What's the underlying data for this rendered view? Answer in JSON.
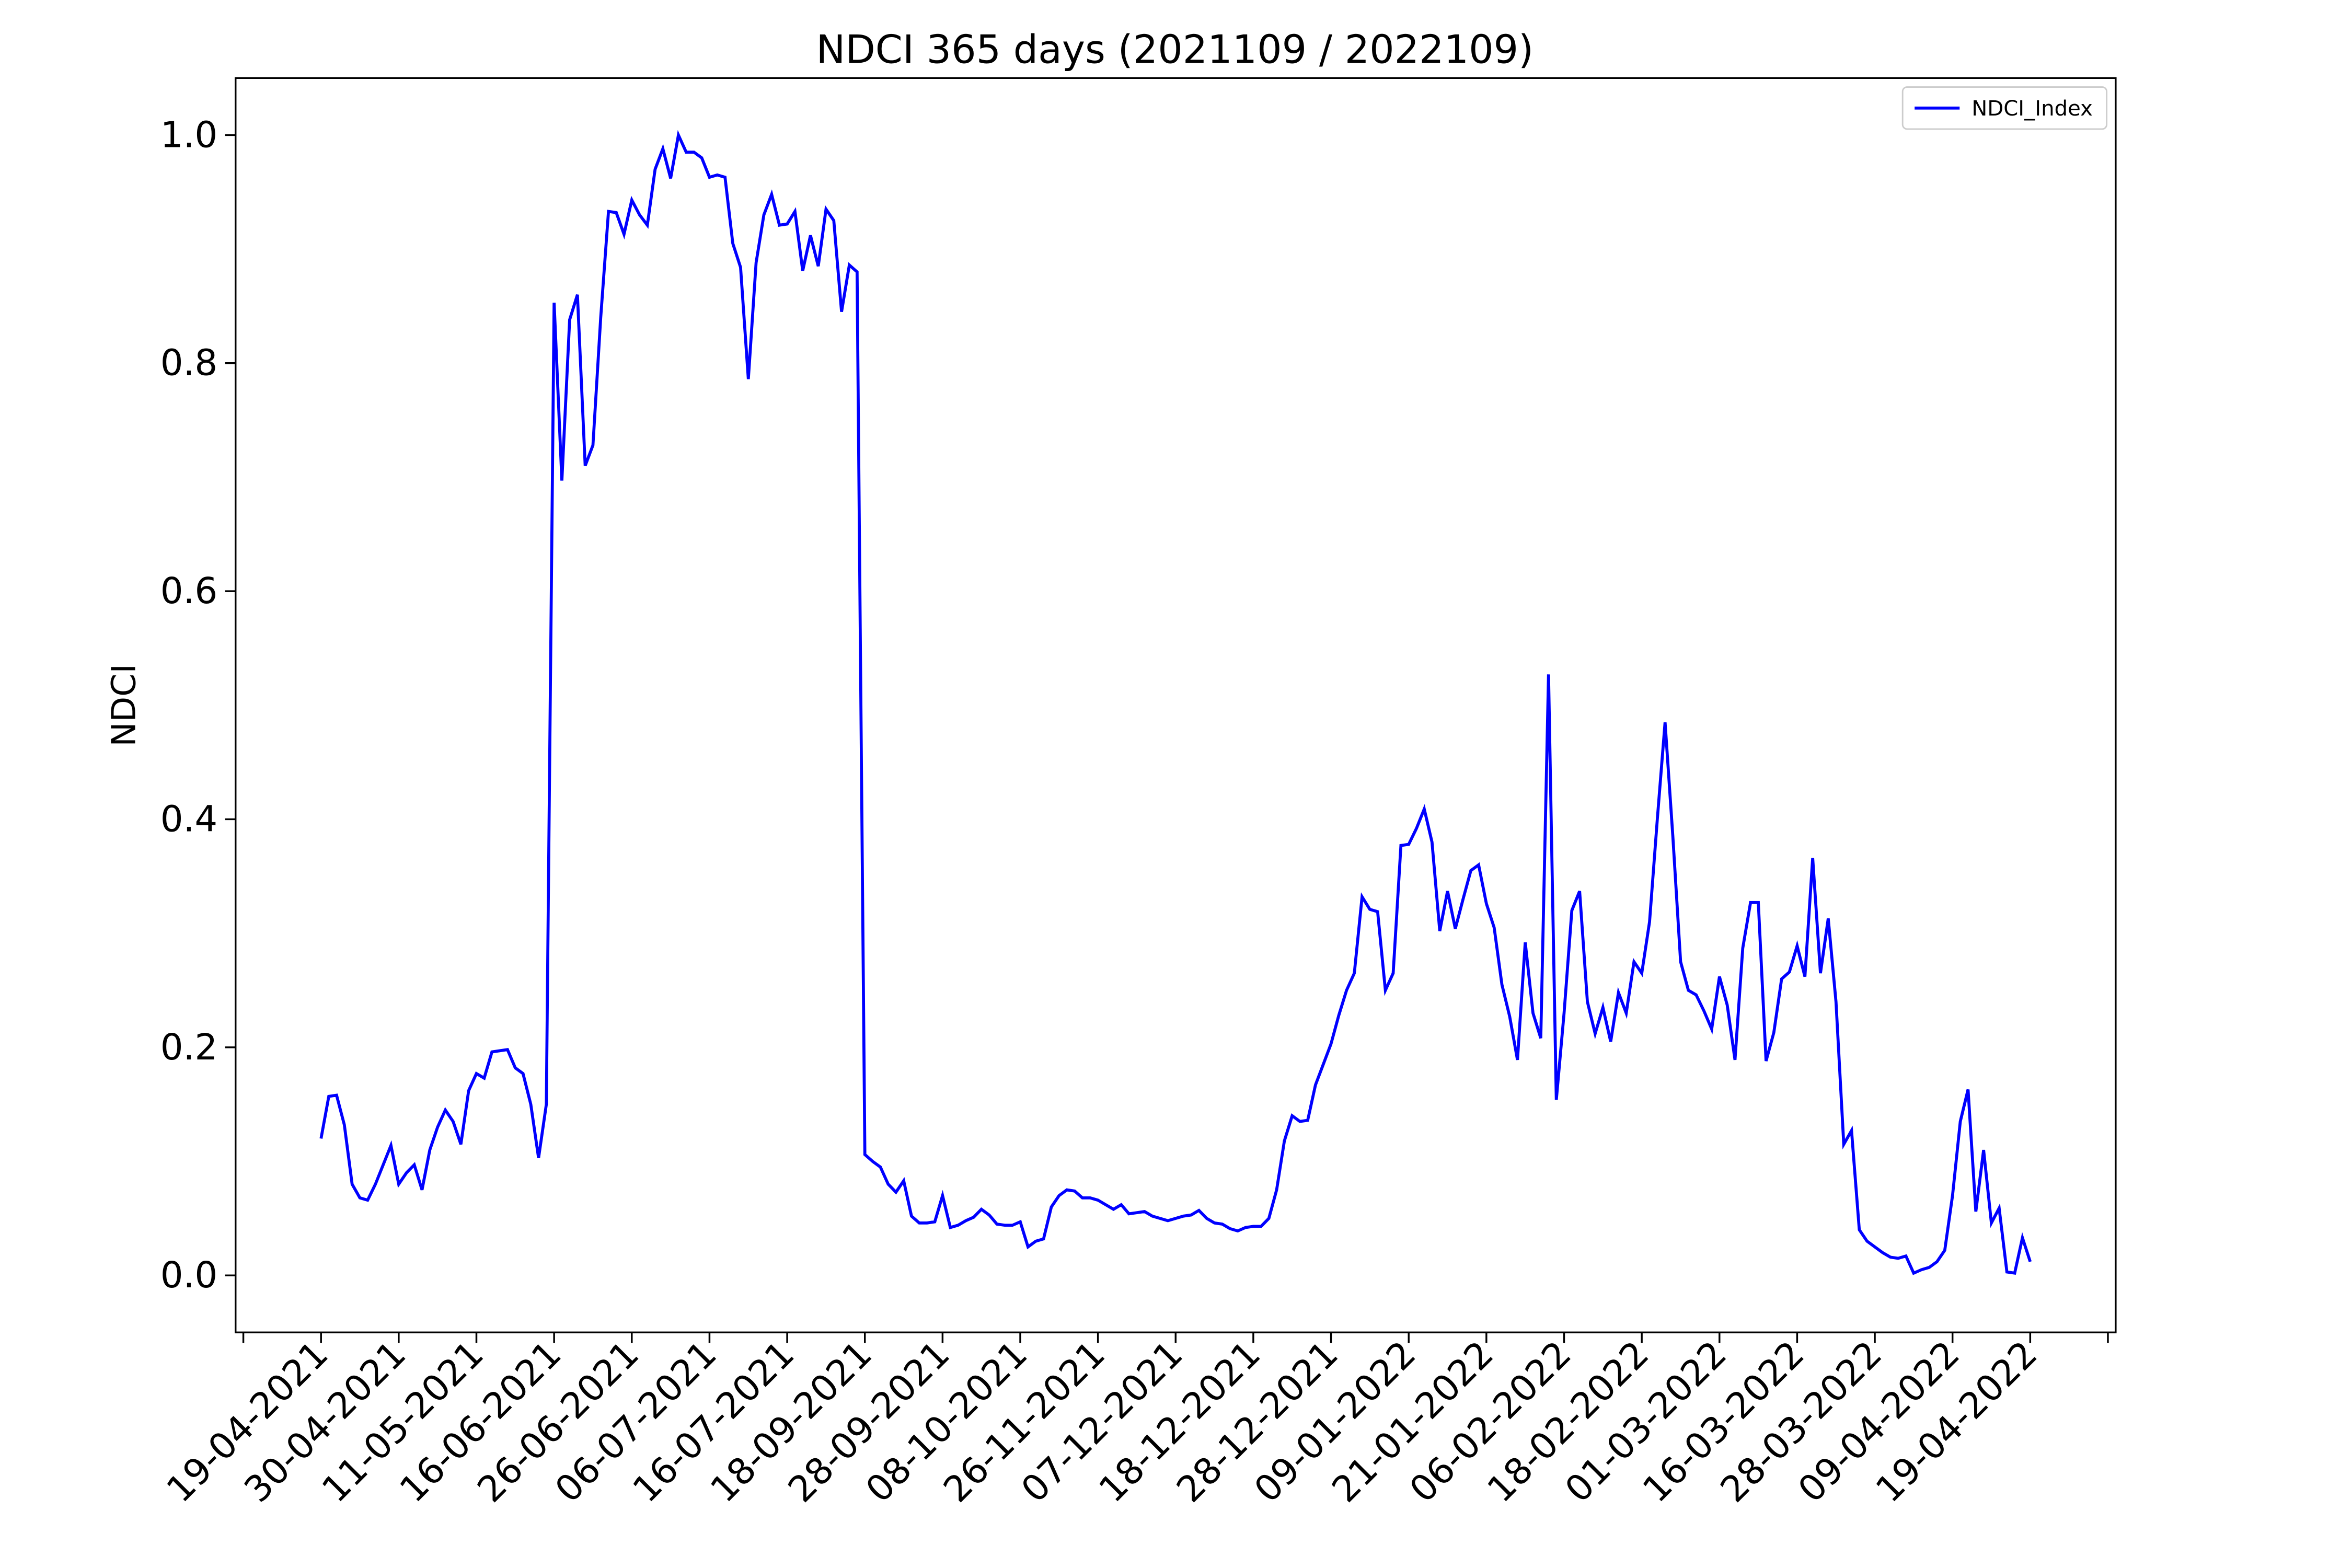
{
  "chart_data": {
    "type": "line",
    "title": "NDCI 365 days (2021109 / 2022109)",
    "y_label": "NDCI",
    "categories": [
      "19-04-2021",
      null,
      null,
      null,
      null,
      null,
      null,
      null,
      null,
      null,
      "30-04-2021",
      null,
      null,
      null,
      null,
      null,
      null,
      null,
      null,
      null,
      "11-05-2021",
      null,
      null,
      null,
      null,
      null,
      null,
      null,
      null,
      null,
      "16-06-2021",
      null,
      null,
      null,
      null,
      null,
      null,
      null,
      null,
      null,
      "26-06-2021",
      null,
      null,
      null,
      null,
      null,
      null,
      null,
      null,
      null,
      "06-07-2021",
      null,
      null,
      null,
      null,
      null,
      null,
      null,
      null,
      null,
      "16-07-2021",
      null,
      null,
      null,
      null,
      null,
      null,
      null,
      null,
      null,
      "18-09-2021",
      null,
      null,
      null,
      null,
      null,
      null,
      null,
      null,
      null,
      "28-09-2021",
      null,
      null,
      null,
      null,
      null,
      null,
      null,
      null,
      null,
      "08-10-2021",
      null,
      null,
      null,
      null,
      null,
      null,
      null,
      null,
      null,
      "26-11-2021",
      null,
      null,
      null,
      null,
      null,
      null,
      null,
      null,
      null,
      "07-12-2021",
      null,
      null,
      null,
      null,
      null,
      null,
      null,
      null,
      null,
      "18-12-2021",
      null,
      null,
      null,
      null,
      null,
      null,
      null,
      null,
      null,
      "28-12-2021",
      null,
      null,
      null,
      null,
      null,
      null,
      null,
      null,
      null,
      "09-01-2022",
      null,
      null,
      null,
      null,
      null,
      null,
      null,
      null,
      null,
      "21-01-2022",
      null,
      null,
      null,
      null,
      null,
      null,
      null,
      null,
      null,
      "06-02-2022",
      null,
      null,
      null,
      null,
      null,
      null,
      null,
      null,
      null,
      "18-02-2022",
      null,
      null,
      null,
      null,
      null,
      null,
      null,
      null,
      null,
      "01-03-2022",
      null,
      null,
      null,
      null,
      null,
      null,
      null,
      null,
      null,
      "16-03-2022",
      null,
      null,
      null,
      null,
      null,
      null,
      null,
      null,
      null,
      "28-03-2022",
      null,
      null,
      null,
      null,
      null,
      null,
      null,
      null,
      null,
      "09-04-2022",
      null,
      null,
      null,
      null,
      null,
      null,
      null,
      null,
      null,
      "19-04-2022"
    ],
    "series": [
      {
        "name": "NDCI_Index",
        "color": "#0000ff",
        "values": [
          0.12,
          0.157,
          0.158,
          0.132,
          0.08,
          0.068,
          0.066,
          0.08,
          0.097,
          0.114,
          0.08,
          0.09,
          0.097,
          0.075,
          0.11,
          0.13,
          0.145,
          0.135,
          0.115,
          0.162,
          0.177,
          0.173,
          0.196,
          0.197,
          0.198,
          0.182,
          0.177,
          0.15,
          0.103,
          0.15,
          0.853,
          0.697,
          0.838,
          0.86,
          0.71,
          0.728,
          0.84,
          0.933,
          0.932,
          0.913,
          0.943,
          0.93,
          0.921,
          0.97,
          0.988,
          0.962,
          1.0,
          0.985,
          0.985,
          0.98,
          0.963,
          0.965,
          0.963,
          0.905,
          0.884,
          0.786,
          0.888,
          0.93,
          0.948,
          0.921,
          0.922,
          0.933,
          0.881,
          0.912,
          0.885,
          0.935,
          0.925,
          0.845,
          0.886,
          0.88,
          0.106,
          0.1,
          0.095,
          0.08,
          0.073,
          0.083,
          0.052,
          0.046,
          0.046,
          0.047,
          0.07,
          0.042,
          0.044,
          0.048,
          0.051,
          0.058,
          0.053,
          0.045,
          0.044,
          0.044,
          0.047,
          0.025,
          0.03,
          0.032,
          0.06,
          0.07,
          0.075,
          0.074,
          0.068,
          0.068,
          0.066,
          0.062,
          0.058,
          0.062,
          0.054,
          0.055,
          0.056,
          0.052,
          0.05,
          0.048,
          0.05,
          0.052,
          0.053,
          0.057,
          0.05,
          0.046,
          0.045,
          0.041,
          0.039,
          0.042,
          0.043,
          0.043,
          0.05,
          0.075,
          0.118,
          0.14,
          0.135,
          0.136,
          0.167,
          0.185,
          0.203,
          0.228,
          0.25,
          0.265,
          0.332,
          0.321,
          0.319,
          0.25,
          0.265,
          0.377,
          0.378,
          0.392,
          0.409,
          0.38,
          0.302,
          0.337,
          0.304,
          0.33,
          0.355,
          0.36,
          0.326,
          0.305,
          0.255,
          0.227,
          0.189,
          0.292,
          0.23,
          0.208,
          0.527,
          0.154,
          0.23,
          0.32,
          0.337,
          0.24,
          0.212,
          0.235,
          0.205,
          0.248,
          0.23,
          0.275,
          0.265,
          0.31,
          0.4,
          0.485,
          0.385,
          0.275,
          0.25,
          0.246,
          0.232,
          0.216,
          0.262,
          0.237,
          0.189,
          0.287,
          0.327,
          0.327,
          0.188,
          0.213,
          0.26,
          0.266,
          0.289,
          0.262,
          0.366,
          0.265,
          0.313,
          0.24,
          0.115,
          0.127,
          0.04,
          0.03,
          0.025,
          0.02,
          0.016,
          0.015,
          0.017,
          0.002,
          0.005,
          0.007,
          0.012,
          0.022,
          0.07,
          0.135,
          0.163,
          0.056,
          0.11,
          0.046,
          0.059,
          0.003,
          0.002,
          0.033,
          0.012
        ]
      }
    ],
    "xlim": [
      -11,
      231
    ],
    "xticks": [
      -10,
      0,
      10,
      20,
      30,
      40,
      50,
      60,
      70,
      80,
      90,
      100,
      110,
      120,
      130,
      140,
      150,
      160,
      170,
      180,
      190,
      200,
      210,
      220,
      230
    ],
    "ylim": [
      -0.05,
      1.05
    ],
    "yticks": [
      {
        "value": 0,
        "label": "0.0"
      },
      0.2,
      0.4,
      0.6,
      0.8,
      {
        "value": 1,
        "label": "1.0"
      }
    ],
    "legend": "upper right"
  }
}
